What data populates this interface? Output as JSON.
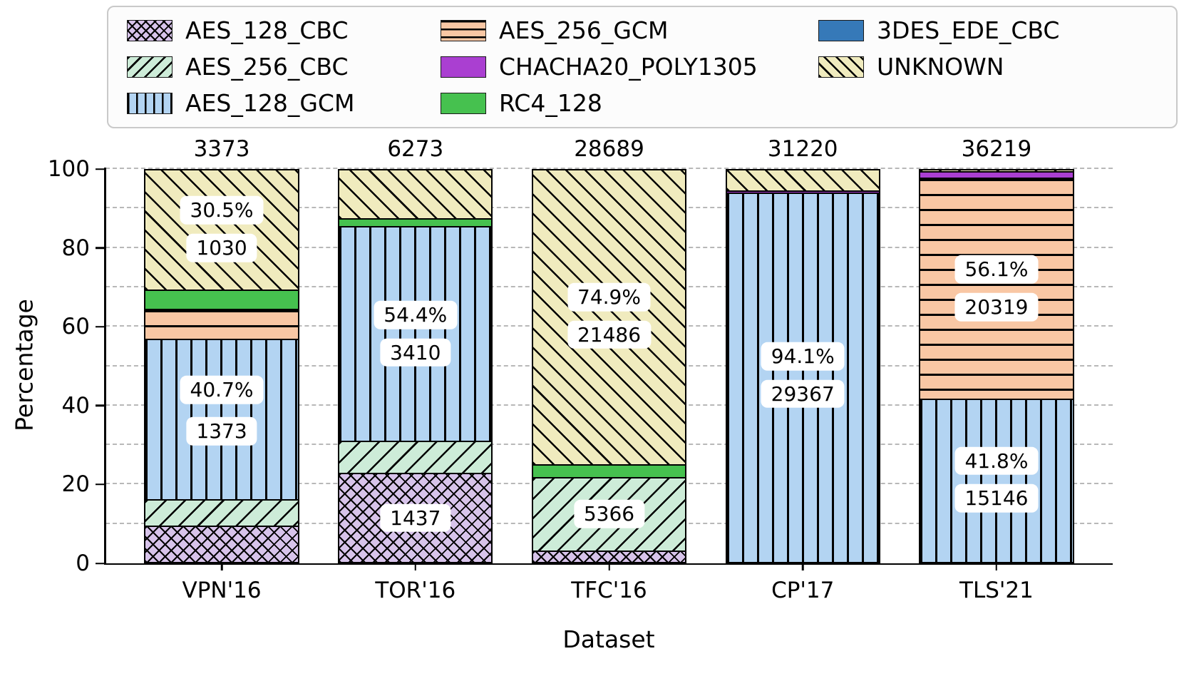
{
  "chart_data": {
    "type": "bar",
    "stacked": true,
    "title": "",
    "xlabel": "Dataset",
    "ylabel": "Percentage",
    "ylim": [
      0,
      100
    ],
    "yticks": [
      0,
      20,
      40,
      60,
      80,
      100
    ],
    "grid_y": [
      10,
      20,
      30,
      40,
      50,
      60,
      70,
      80,
      90,
      100
    ],
    "grid_style": "dashed",
    "legend_position": "top",
    "categories": [
      "VPN'16",
      "TOR'16",
      "TFC'16",
      "CP'17",
      "TLS'21"
    ],
    "bar_totals": [
      "3373",
      "6273",
      "28689",
      "31220",
      "36219"
    ],
    "series": [
      {
        "name": "AES_128_CBC",
        "color": "#d7c3ea",
        "pattern": "crosshatch",
        "values": [
          9.5,
          22.9,
          3.2,
          0,
          0
        ]
      },
      {
        "name": "AES_256_CBC",
        "color": "#cdecd8",
        "pattern": "diag-f",
        "values": [
          6.7,
          8.2,
          18.7,
          0,
          0
        ]
      },
      {
        "name": "AES_128_GCM",
        "color": "#b3d4f2",
        "pattern": "vert",
        "values": [
          40.7,
          54.4,
          0,
          94.1,
          41.8
        ]
      },
      {
        "name": "AES_256_GCM",
        "color": "#f9c7a4",
        "pattern": "horiz",
        "values": [
          7.7,
          0,
          0,
          0,
          56.1
        ]
      },
      {
        "name": "CHACHA20_POLY1305",
        "color": "#aa3fd1",
        "pattern": "solid",
        "values": [
          0,
          0,
          0,
          0.4,
          1.6
        ]
      },
      {
        "name": "RC4_128",
        "color": "#46c14f",
        "pattern": "solid",
        "values": [
          4.9,
          2.0,
          3.2,
          0,
          0
        ]
      },
      {
        "name": "3DES_EDE_CBC",
        "color": "#3679b8",
        "pattern": "solid",
        "values": [
          0,
          0,
          0,
          0,
          0
        ]
      },
      {
        "name": "UNKNOWN",
        "color": "#f0ebbe",
        "pattern": "diag-b",
        "values": [
          30.5,
          12.5,
          74.9,
          5.5,
          0.5
        ]
      }
    ],
    "annotations": [
      {
        "bar": 0,
        "text": "30.5%",
        "y": 89.5
      },
      {
        "bar": 0,
        "text": "1030",
        "y": 80
      },
      {
        "bar": 0,
        "text": "40.7%",
        "y": 44
      },
      {
        "bar": 0,
        "text": "1373",
        "y": 33.5
      },
      {
        "bar": 1,
        "text": "54.4%",
        "y": 63
      },
      {
        "bar": 1,
        "text": "3410",
        "y": 53.5
      },
      {
        "bar": 1,
        "text": "1437",
        "y": 11.5
      },
      {
        "bar": 2,
        "text": "74.9%",
        "y": 67.5
      },
      {
        "bar": 2,
        "text": "21486",
        "y": 58
      },
      {
        "bar": 2,
        "text": "5366",
        "y": 12.5
      },
      {
        "bar": 3,
        "text": "94.1%",
        "y": 52.5
      },
      {
        "bar": 3,
        "text": "29367",
        "y": 43
      },
      {
        "bar": 4,
        "text": "56.1%",
        "y": 74.5
      },
      {
        "bar": 4,
        "text": "20319",
        "y": 65
      },
      {
        "bar": 4,
        "text": "41.8%",
        "y": 26
      },
      {
        "bar": 4,
        "text": "15146",
        "y": 16.5
      }
    ]
  }
}
